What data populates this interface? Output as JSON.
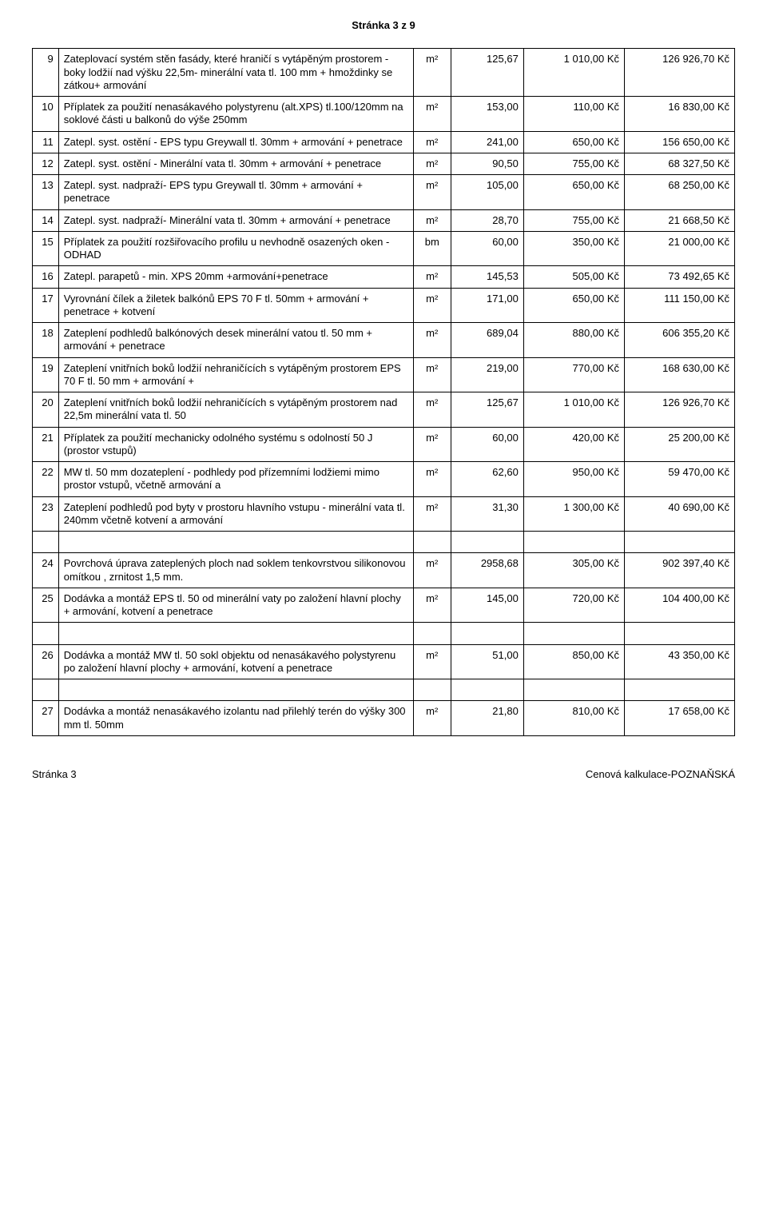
{
  "page_header": "Stránka 3 z 9",
  "footer_left": "Stránka 3",
  "footer_right": "Cenová kalkulace-POZNAŇSKÁ",
  "unit_m2": "m²",
  "unit_bm": "bm",
  "rows": [
    {
      "n": "9",
      "desc": "Zateplovací systém stěn fasády, které hraničí s vytápěným prostorem - boky lodžií nad výšku 22,5m- minerální vata tl. 100 mm + hmoždinky se zátkou+ armování",
      "unit": "m²",
      "qty": "125,67",
      "uprice": "1 010,00 Kč",
      "total": "126 926,70 Kč"
    },
    {
      "n": "10",
      "desc": "Příplatek za použití nenasákavého polystyrenu (alt.XPS) tl.100/120mm na soklové části u balkonů do výše 250mm",
      "unit": "m²",
      "qty": "153,00",
      "uprice": "110,00 Kč",
      "total": "16 830,00 Kč"
    },
    {
      "n": "11",
      "desc": "Zatepl. syst. ostění - EPS typu Greywall tl. 30mm  + armování + penetrace",
      "unit": "m²",
      "qty": "241,00",
      "uprice": "650,00 Kč",
      "total": "156 650,00 Kč"
    },
    {
      "n": "12",
      "desc": "Zatepl. syst. ostění - Minerální vata tl. 30mm  + armování + penetrace",
      "unit": "m²",
      "qty": "90,50",
      "uprice": "755,00 Kč",
      "total": "68 327,50 Kč"
    },
    {
      "n": "13",
      "desc": "Zatepl. syst. nadpraží- EPS typu Greywall tl. 30mm  + armování + penetrace",
      "unit": "m²",
      "qty": "105,00",
      "uprice": "650,00 Kč",
      "total": "68 250,00 Kč"
    },
    {
      "n": "14",
      "desc": "Zatepl. syst. nadpraží- Minerální vata tl. 30mm  + armování + penetrace",
      "unit": "m²",
      "qty": "28,70",
      "uprice": "755,00 Kč",
      "total": "21 668,50 Kč"
    },
    {
      "n": "15",
      "desc": "Příplatek za použití rozšiřovacího profilu u nevhodně osazených oken - ODHAD",
      "unit": "bm",
      "qty": "60,00",
      "uprice": "350,00 Kč",
      "total": "21 000,00 Kč"
    },
    {
      "n": "16",
      "desc": "Zatepl. parapetů - min. XPS 20mm +armování+penetrace",
      "unit": "m²",
      "qty": "145,53",
      "uprice": "505,00 Kč",
      "total": "73 492,65 Kč"
    },
    {
      "n": "17",
      "desc": "Vyrovnání čílek a žiletek balkónů EPS 70 F tl. 50mm + armování + penetrace + kotvení",
      "unit": "m²",
      "qty": "171,00",
      "uprice": "650,00 Kč",
      "total": "111 150,00 Kč"
    },
    {
      "n": "18",
      "desc": "Zateplení podhledů balkónových desek minerální vatou tl. 50 mm + armování + penetrace",
      "unit": "m²",
      "qty": "689,04",
      "uprice": "880,00 Kč",
      "total": "606 355,20 Kč"
    },
    {
      "n": "19",
      "desc": "Zateplení vnitřních boků lodžií nehraničících s vytápěným prostorem EPS 70 F tl. 50 mm + armování +",
      "unit": "m²",
      "qty": "219,00",
      "uprice": "770,00 Kč",
      "total": "168 630,00 Kč"
    },
    {
      "n": "20",
      "desc": "Zateplení vnitřních boků lodžií nehraničících s vytápěným prostorem nad 22,5m minerální vata tl. 50",
      "unit": "m²",
      "qty": "125,67",
      "uprice": "1 010,00 Kč",
      "total": "126 926,70 Kč"
    },
    {
      "n": "21",
      "desc": "Příplatek za použití mechanicky odolného systému s odolností 50 J (prostor vstupů)",
      "unit": "m²",
      "qty": "60,00",
      "uprice": "420,00 Kč",
      "total": "25 200,00 Kč"
    },
    {
      "n": "22",
      "desc": "MW tl. 50 mm dozateplení - podhledy pod přízemními lodžiemi mimo prostor vstupů, včetně armování a",
      "unit": "m²",
      "qty": "62,60",
      "uprice": "950,00 Kč",
      "total": "59 470,00 Kč"
    },
    {
      "n": "23",
      "desc": "Zateplení podhledů pod byty v prostoru hlavního vstupu - minerální vata tl. 240mm včetně kotvení a armování",
      "unit": "m²",
      "qty": "31,30",
      "uprice": "1 300,00 Kč",
      "total": "40 690,00 Kč"
    },
    {
      "n": "24",
      "desc": "Povrchová úprava zateplených ploch nad soklem tenkovrstvou silikonovou omítkou , zrnitost 1,5 mm.",
      "unit": "m²",
      "qty": "2958,68",
      "uprice": "305,00 Kč",
      "total": "902 397,40 Kč"
    },
    {
      "n": "25",
      "desc": "Dodávka a montáž EPS tl. 50 od minerální vaty po založení hlavní plochy + armování, kotvení a penetrace",
      "unit": "m²",
      "qty": "145,00",
      "uprice": "720,00 Kč",
      "total": "104 400,00 Kč"
    },
    {
      "n": "26",
      "desc": "Dodávka a montáž MW tl. 50 sokl objektu od nenasákavého polystyrenu po založení hlavní plochy + armování, kotvení a penetrace",
      "unit": "m²",
      "qty": "51,00",
      "uprice": "850,00 Kč",
      "total": "43 350,00 Kč"
    },
    {
      "n": "27",
      "desc": "Dodávka a montáž nenasákavého izolantu nad přilehlý terén do výšky 300 mm tl. 50mm",
      "unit": "m²",
      "qty": "21,80",
      "uprice": "810,00 Kč",
      "total": "17 658,00 Kč"
    }
  ],
  "gaps_after": [
    "23",
    "25",
    "26"
  ]
}
